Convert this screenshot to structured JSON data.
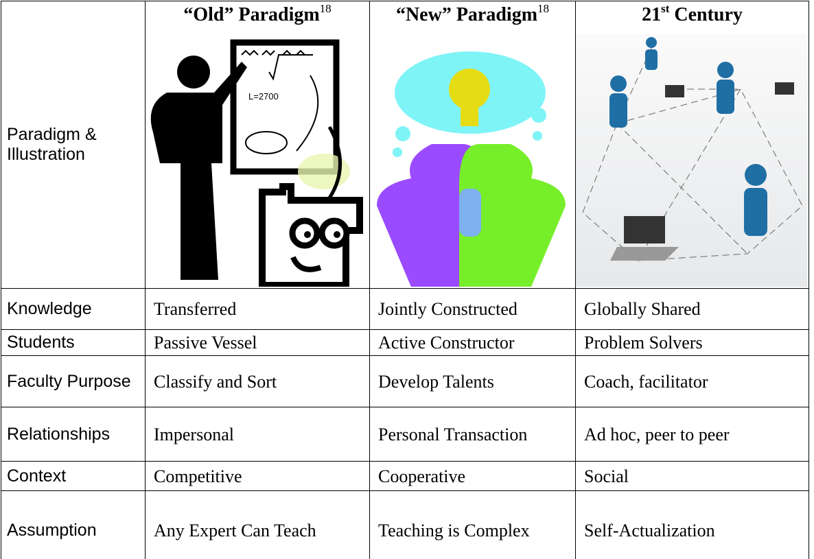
{
  "table": {
    "header": [
      {
        "text": "“Old” Paradigm",
        "sup": "18"
      },
      {
        "text": "“New” Paradigm",
        "sup": "18"
      },
      {
        "text": "21",
        "sup": "st",
        "tail": " Century"
      }
    ],
    "illustration_label": "Paradigm & Illustration",
    "rows": [
      [
        "Knowledge",
        "Transferred",
        "Jointly Constructed",
        "Globally Shared"
      ],
      [
        "Students",
        "Passive Vessel",
        "Active  Constructor",
        "Problem Solvers"
      ],
      [
        "Faculty Purpose",
        "Classify and Sort",
        "Develop Talents",
        "Coach, facilitator"
      ],
      [
        "Relationships",
        "Impersonal",
        "Personal Transaction",
        "Ad hoc, peer to peer"
      ],
      [
        "Context",
        "Competitive",
        "Cooperative",
        "Social"
      ],
      [
        "Assumption",
        "Any Expert Can Teach",
        "Teaching is Complex",
        "Self-Actualization"
      ]
    ]
  }
}
